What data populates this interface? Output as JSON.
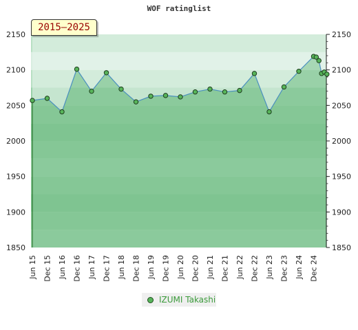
{
  "chart_data": {
    "type": "area",
    "title": "WOF ratinglist",
    "period": "2015–2025",
    "ylim": [
      1850,
      2150
    ],
    "y_ticks": [
      1850,
      1900,
      1950,
      2000,
      2050,
      2100,
      2150
    ],
    "x_tick_labels": [
      "Jun 15",
      "Dec 15",
      "Jun 16",
      "Dec 16",
      "Jun 17",
      "Dec 17",
      "Jun 18",
      "Dec 18",
      "Jun 19",
      "Dec 19",
      "Jun 20",
      "Dec 20",
      "Jun 21",
      "Dec 21",
      "Jun 22",
      "Dec 22",
      "Jun 23",
      "Dec 23",
      "Jun 24",
      "Dec 24"
    ],
    "legend_position": "bottom",
    "series": [
      {
        "name": "IZUMI Takashi",
        "color": "#57b45a",
        "points": [
          {
            "x": 0,
            "y": 2057
          },
          {
            "x": 1,
            "y": 2060
          },
          {
            "x": 2,
            "y": 2041
          },
          {
            "x": 3,
            "y": 2101
          },
          {
            "x": 4,
            "y": 2070
          },
          {
            "x": 5,
            "y": 2096
          },
          {
            "x": 6,
            "y": 2073
          },
          {
            "x": 7,
            "y": 2055
          },
          {
            "x": 8,
            "y": 2063
          },
          {
            "x": 9,
            "y": 2064
          },
          {
            "x": 10,
            "y": 2062
          },
          {
            "x": 11,
            "y": 2069
          },
          {
            "x": 12,
            "y": 2073
          },
          {
            "x": 13,
            "y": 2069
          },
          {
            "x": 14,
            "y": 2071
          },
          {
            "x": 15,
            "y": 2095
          },
          {
            "x": 16,
            "y": 2041
          },
          {
            "x": 17,
            "y": 2076
          },
          {
            "x": 18,
            "y": 2098
          },
          {
            "x": 19,
            "y": 2119
          },
          {
            "x": 19.18,
            "y": 2118
          },
          {
            "x": 19.36,
            "y": 2113
          },
          {
            "x": 19.54,
            "y": 2095
          },
          {
            "x": 19.72,
            "y": 2097
          },
          {
            "x": 19.9,
            "y": 2094
          }
        ]
      }
    ]
  }
}
